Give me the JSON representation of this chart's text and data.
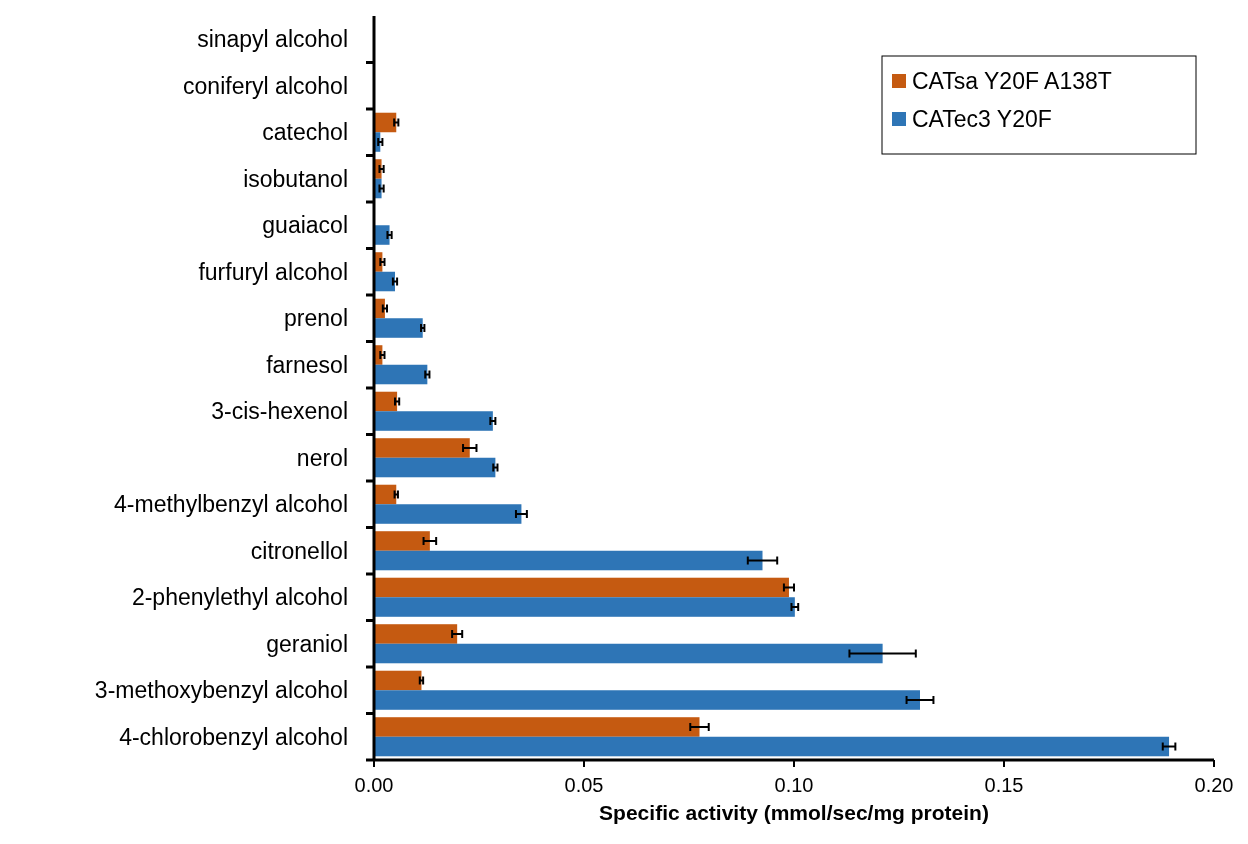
{
  "chart_data": {
    "type": "bar",
    "orientation": "horizontal",
    "xlabel": "Specific activity (mmol/sec/mg protein)",
    "categories": [
      "sinapyl alcohol",
      "coniferyl alcohol",
      "catechol",
      "isobutanol",
      "guaiacol",
      "furfuryl alcohol",
      "prenol",
      "farnesol",
      "3-cis-hexenol",
      "nerol",
      "4-methylbenzyl alcohol",
      "citronellol",
      "2-phenylethyl alcohol",
      "geraniol",
      "3-methoxybenzyl alcohol",
      "4-chlorobenzyl alcohol"
    ],
    "series": [
      {
        "name": "CATsa Y20F A138T",
        "color": "#c55a11",
        "values": [
          0,
          0,
          0.0053,
          0.0018,
          0,
          0.002,
          0.0026,
          0.002,
          0.0055,
          0.0228,
          0.0053,
          0.0133,
          0.0988,
          0.0198,
          0.0113,
          0.0775
        ],
        "errors": [
          null,
          null,
          0.0005,
          0.0005,
          null,
          0.0005,
          0.0005,
          0.0005,
          0.0005,
          0.0016,
          0.0004,
          0.0015,
          0.0012,
          0.0012,
          0.0004,
          0.0022
        ]
      },
      {
        "name": "CATec3 Y20F",
        "color": "#2e75b6",
        "values": [
          0,
          0,
          0.0015,
          0.0018,
          0.0037,
          0.005,
          0.0116,
          0.0127,
          0.0283,
          0.0289,
          0.0351,
          0.0925,
          0.1002,
          0.1211,
          0.13,
          0.1893
        ],
        "errors": [
          null,
          null,
          0.0005,
          0.0005,
          0.0005,
          0.0005,
          0.0004,
          0.0005,
          0.0006,
          0.0005,
          0.0013,
          0.0035,
          0.0008,
          0.0079,
          0.0032,
          0.0015
        ]
      }
    ],
    "xlim": [
      0,
      0.2
    ],
    "xticks": [
      {
        "value": 0,
        "label": "0.00"
      },
      {
        "value": 0.05,
        "label": "0.05"
      },
      {
        "value": 0.1,
        "label": "0.10"
      },
      {
        "value": 0.15,
        "label": "0.15"
      },
      {
        "value": 0.2,
        "label": "0.20"
      }
    ],
    "legend": "top right",
    "grid": false
  }
}
